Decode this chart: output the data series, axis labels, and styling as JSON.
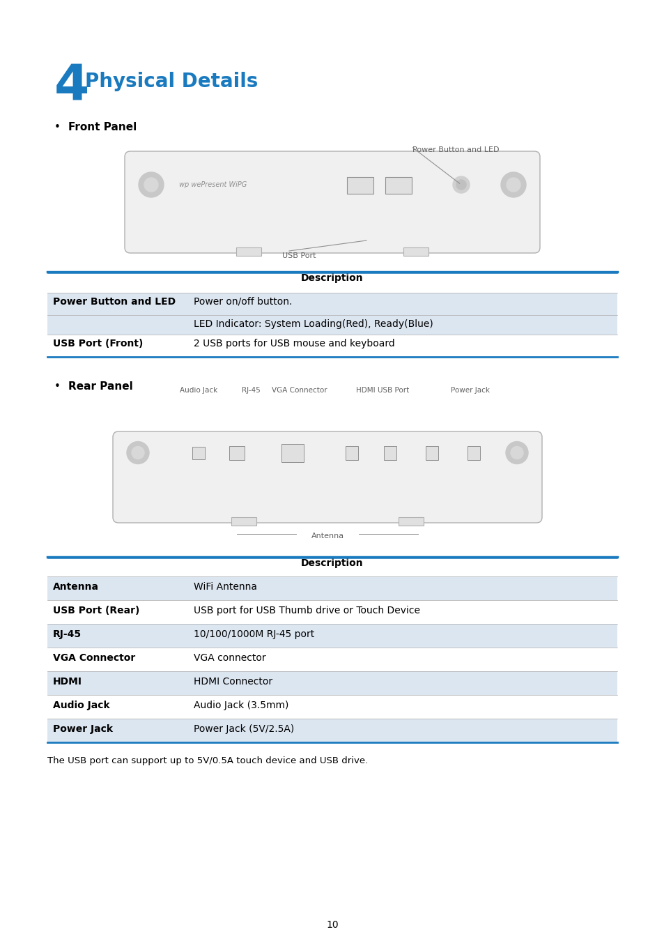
{
  "title_number": "4",
  "title_text": "Physical Details",
  "title_number_color": "#1a7abf",
  "title_text_color": "#1a7abf",
  "bullet_color": "#000000",
  "section1_bullet": "Front Panel",
  "section2_bullet": "Rear Panel",
  "table1_header": "Description",
  "table1_col1_header_bg": "#dce6f1",
  "table1_rows": [
    [
      "Power Button and LED",
      "Power on/off button.",
      true
    ],
    [
      "",
      "LED Indicator: System Loading(Red), Ready(Blue)",
      false
    ],
    [
      "USB Port (Front)",
      "2 USB ports for USB mouse and keyboard",
      true
    ]
  ],
  "table1_row_bg_alt": "#dce6f1",
  "table1_row_bg_white": "#ffffff",
  "table2_header": "Description",
  "table2_rows": [
    [
      "Antenna",
      "WiFi Antenna",
      true
    ],
    [
      "USB Port (Rear)",
      "USB port for USB Thumb drive or Touch Device",
      false
    ],
    [
      "RJ-45",
      "10/100/1000M RJ-45 port",
      true
    ],
    [
      "VGA Connector",
      "VGA connector",
      false
    ],
    [
      "HDMI",
      "HDMI Connector",
      true
    ],
    [
      "Audio Jack",
      "Audio Jack (3.5mm)",
      false
    ],
    [
      "Power Jack",
      "Power Jack (5V/2.5A)",
      true
    ]
  ],
  "footer_note": "The USB port can support up to 5V/0.5A touch device and USB drive.",
  "page_number": "10",
  "line_color": "#1a7abf",
  "table_border_color": "#1a7abf",
  "bg_color": "#ffffff"
}
